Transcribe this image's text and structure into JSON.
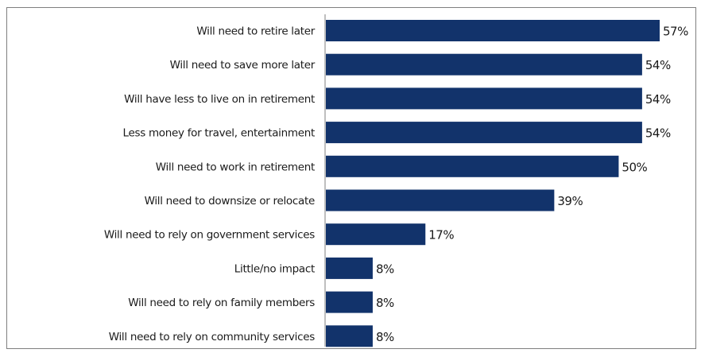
{
  "chart_data": {
    "type": "bar",
    "orientation": "horizontal",
    "title": "",
    "xlabel": "",
    "ylabel": "",
    "xlim": [
      0,
      57
    ],
    "grid": false,
    "legend": "none",
    "bar_color": "#12336b",
    "categories": [
      "Will need to retire later",
      "Will need to save more later",
      "Will have less to live on in retirement",
      "Less money for travel, entertainment",
      "Will need to work in retirement",
      "Will need to downsize or relocate",
      "Will need to rely on government services",
      "Little/no impact",
      "Will need to rely on family members",
      "Will need to rely on community services"
    ],
    "values": [
      57,
      54,
      54,
      54,
      50,
      39,
      17,
      8,
      8,
      8
    ],
    "value_labels": [
      "57%",
      "54%",
      "54%",
      "54%",
      "50%",
      "39%",
      "17%",
      "8%",
      "8%",
      "8%"
    ]
  }
}
